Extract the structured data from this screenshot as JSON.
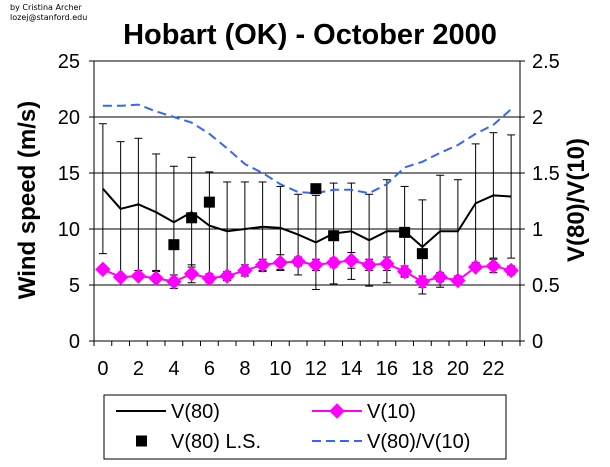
{
  "credit": {
    "line1": "by Cristina Archer",
    "line2": "lozej@stanford.edu"
  },
  "chart_data": {
    "type": "line",
    "title": "Hobart (OK) - October 2000",
    "xlabel": "",
    "ylabel": "Wind speed (m/s)",
    "y2label": "V(80)/V(10)",
    "x": [
      0,
      1,
      2,
      3,
      4,
      5,
      6,
      7,
      8,
      9,
      10,
      11,
      12,
      13,
      14,
      15,
      16,
      17,
      18,
      19,
      20,
      21,
      22,
      23
    ],
    "xlim": [
      -0.5,
      23.5
    ],
    "ylim": [
      0,
      25
    ],
    "y2lim": [
      0,
      2.5
    ],
    "xticks": [
      0,
      2,
      4,
      6,
      8,
      10,
      12,
      14,
      16,
      18,
      20,
      22
    ],
    "yticks": [
      0,
      5,
      10,
      15,
      20,
      25
    ],
    "y2ticks": [
      "0",
      "0.5",
      "1",
      "1.5",
      "2",
      "2.5"
    ],
    "grid": "horizontal",
    "legend_position": "bottom",
    "series": [
      {
        "name": "V(80)",
        "axis": "left",
        "style": "line",
        "color": "#000000",
        "values": [
          13.6,
          11.8,
          12.2,
          11.5,
          10.6,
          11.5,
          10.3,
          9.8,
          10.0,
          10.2,
          10.1,
          9.5,
          8.8,
          9.6,
          9.8,
          9.0,
          9.8,
          9.8,
          8.4,
          9.8,
          9.8,
          12.3,
          13.0,
          12.9
        ],
        "error_plus": [
          5.8,
          6.0,
          5.9,
          5.2,
          5.0,
          4.9,
          4.8,
          4.4,
          4.2,
          4.0,
          3.7,
          3.6,
          4.2,
          4.5,
          4.3,
          4.1,
          4.6,
          4.0,
          4.2,
          5.0,
          4.6,
          5.3,
          5.6,
          5.5
        ],
        "error_minus": [
          5.8,
          6.0,
          5.9,
          5.2,
          5.0,
          4.9,
          4.8,
          4.4,
          4.2,
          4.0,
          3.7,
          3.6,
          4.2,
          4.5,
          4.3,
          4.1,
          4.6,
          4.0,
          4.2,
          5.0,
          4.6,
          5.3,
          5.6,
          5.5
        ]
      },
      {
        "name": "V(10)",
        "axis": "left",
        "style": "line-diamond",
        "color": "#ff00ff",
        "values": [
          6.4,
          5.7,
          5.8,
          5.6,
          5.3,
          6.0,
          5.6,
          5.8,
          6.3,
          6.8,
          7.0,
          7.1,
          6.8,
          7.0,
          7.2,
          6.8,
          6.9,
          6.2,
          5.3,
          5.7,
          5.4,
          6.6,
          6.7,
          6.3
        ],
        "error_plus": [
          0.0,
          0.3,
          0.0,
          0.6,
          0.6,
          0.8,
          0.4,
          0.4,
          0.5,
          0.5,
          0.7,
          0.4,
          0.5,
          0.4,
          0.7,
          0.5,
          0.6,
          0.5,
          0.5,
          0.4,
          0.4,
          0.3,
          0.6,
          0.4
        ],
        "error_minus": [
          0.0,
          0.3,
          0.0,
          0.6,
          0.6,
          0.8,
          0.4,
          0.4,
          0.5,
          0.5,
          0.7,
          0.4,
          0.5,
          0.4,
          0.7,
          0.5,
          0.6,
          0.5,
          0.5,
          0.4,
          0.4,
          0.3,
          0.6,
          0.4
        ]
      },
      {
        "name": "V(80) L.S.",
        "axis": "left",
        "style": "marker-square",
        "color": "#000000",
        "points": [
          [
            4,
            8.6
          ],
          [
            5,
            11.0
          ],
          [
            6,
            12.4
          ],
          [
            12,
            13.6
          ],
          [
            13,
            9.4
          ],
          [
            17,
            9.7
          ],
          [
            18,
            7.8
          ]
        ]
      },
      {
        "name": "V(80)/V(10)",
        "axis": "right",
        "style": "dashed",
        "color": "#3366ff",
        "values": [
          2.1,
          2.1,
          2.11,
          2.05,
          2.0,
          1.95,
          1.85,
          1.72,
          1.58,
          1.5,
          1.4,
          1.33,
          1.32,
          1.35,
          1.35,
          1.32,
          1.4,
          1.55,
          1.6,
          1.68,
          1.75,
          1.85,
          1.93,
          2.07
        ]
      }
    ],
    "legend": [
      [
        "V(80)",
        "V(10)"
      ],
      [
        "V(80) L.S.",
        "V(80)/V(10)"
      ]
    ]
  }
}
